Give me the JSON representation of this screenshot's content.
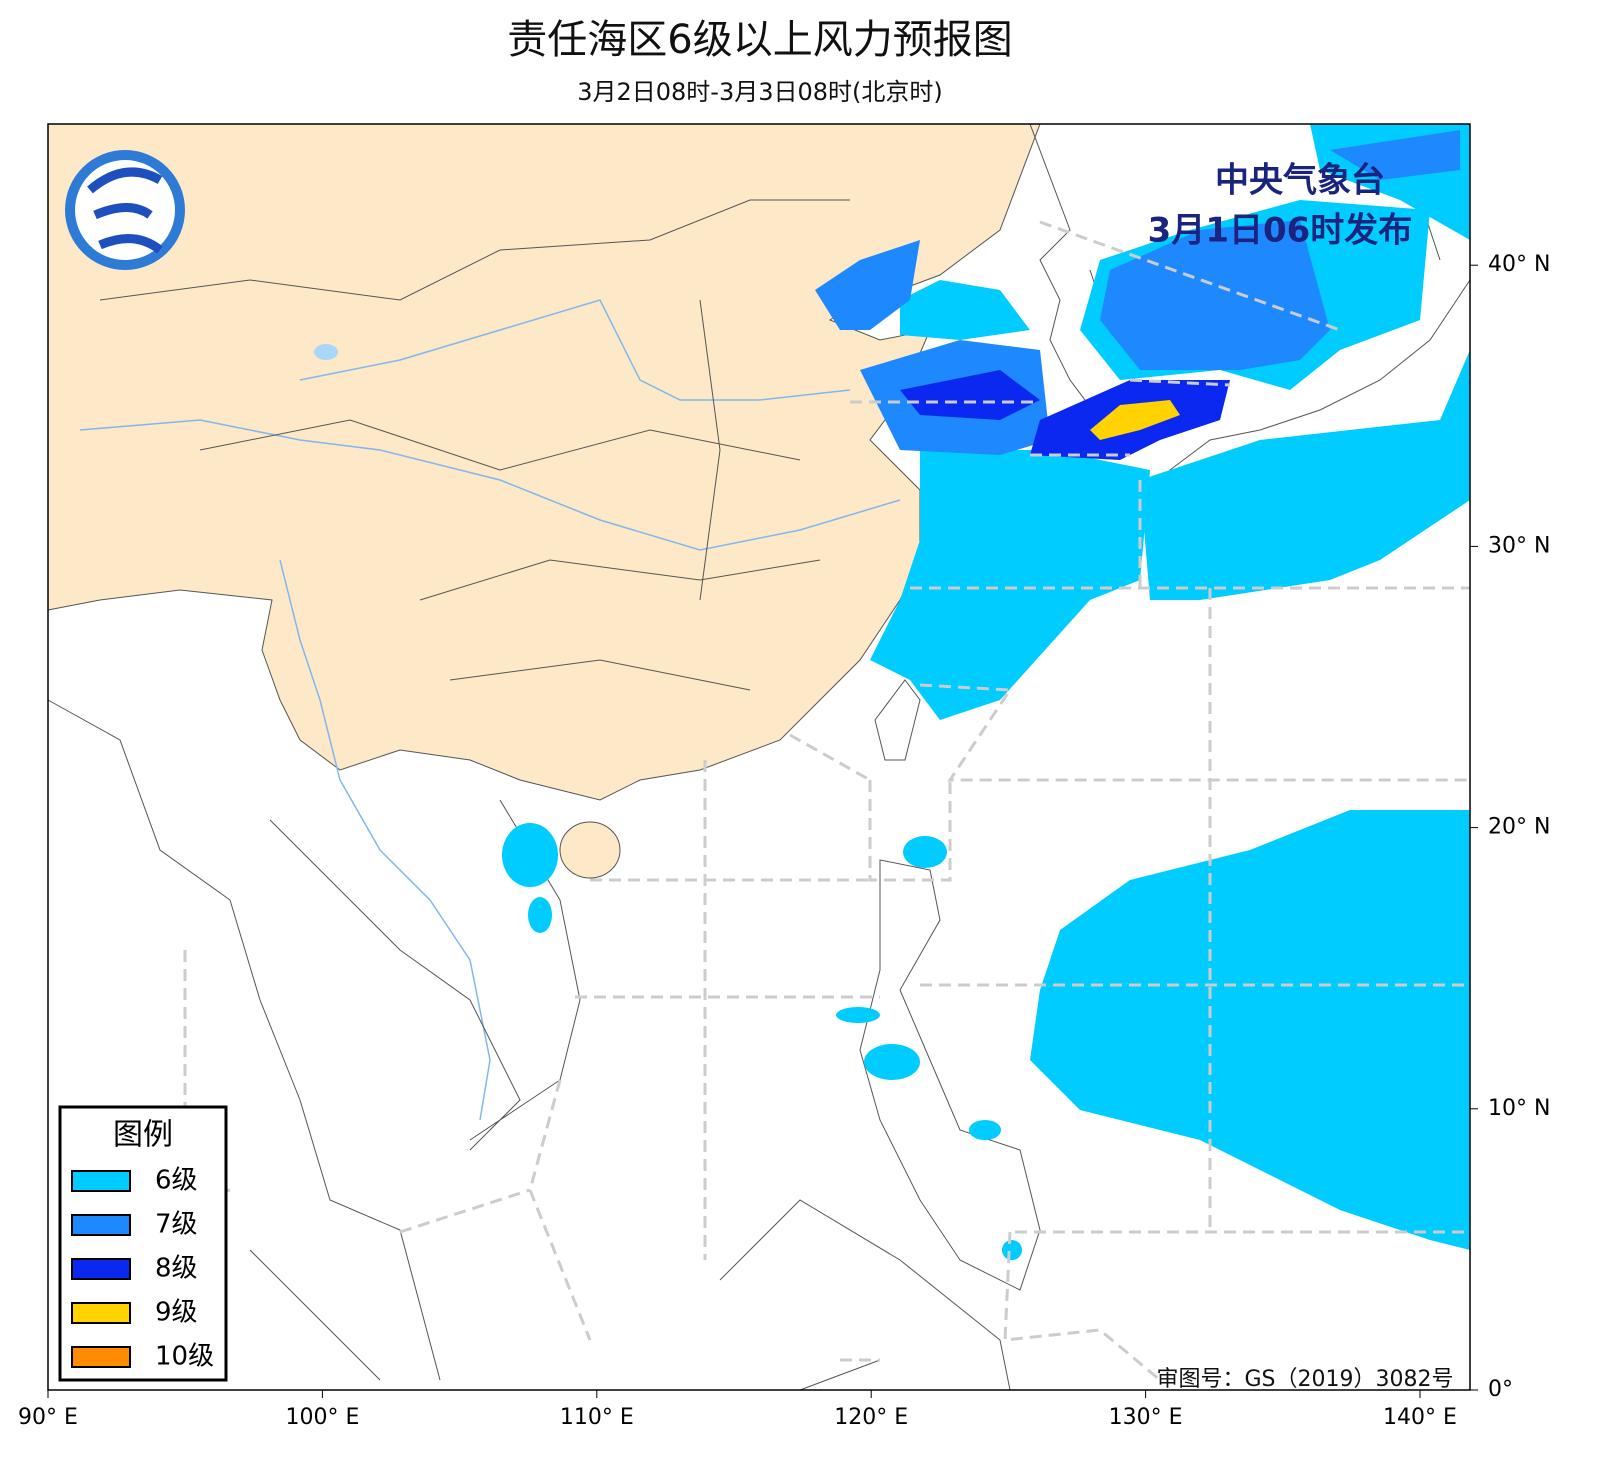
{
  "header": {
    "title": "责任海区6级以上风力预报图",
    "subtitle": "3月2日08时-3月3日08时(北京时)"
  },
  "issuer": {
    "agency": "中央气象台",
    "issued": "3月1日06时发布"
  },
  "legend": {
    "title": "图例",
    "items": [
      {
        "label": "6级",
        "color": "#00ccff"
      },
      {
        "label": "7级",
        "color": "#1e88ff"
      },
      {
        "label": "8级",
        "color": "#0a28f0"
      },
      {
        "label": "9级",
        "color": "#ffd200"
      },
      {
        "label": "10级",
        "color": "#ff8c00"
      }
    ]
  },
  "axes": {
    "x_ticks": [
      {
        "value": 90,
        "label": "90° E"
      },
      {
        "value": 100,
        "label": "100° E"
      },
      {
        "value": 110,
        "label": "110° E"
      },
      {
        "value": 120,
        "label": "120° E"
      },
      {
        "value": 130,
        "label": "130° E"
      },
      {
        "value": 140,
        "label": "140° E"
      }
    ],
    "y_ticks": [
      {
        "value": 0,
        "label": "0°"
      },
      {
        "value": 10,
        "label": "10° N"
      },
      {
        "value": 20,
        "label": "20° N"
      },
      {
        "value": 30,
        "label": "30° N"
      },
      {
        "value": 40,
        "label": "40° N"
      }
    ]
  },
  "approval": "审图号：GS（2019）3082号"
}
